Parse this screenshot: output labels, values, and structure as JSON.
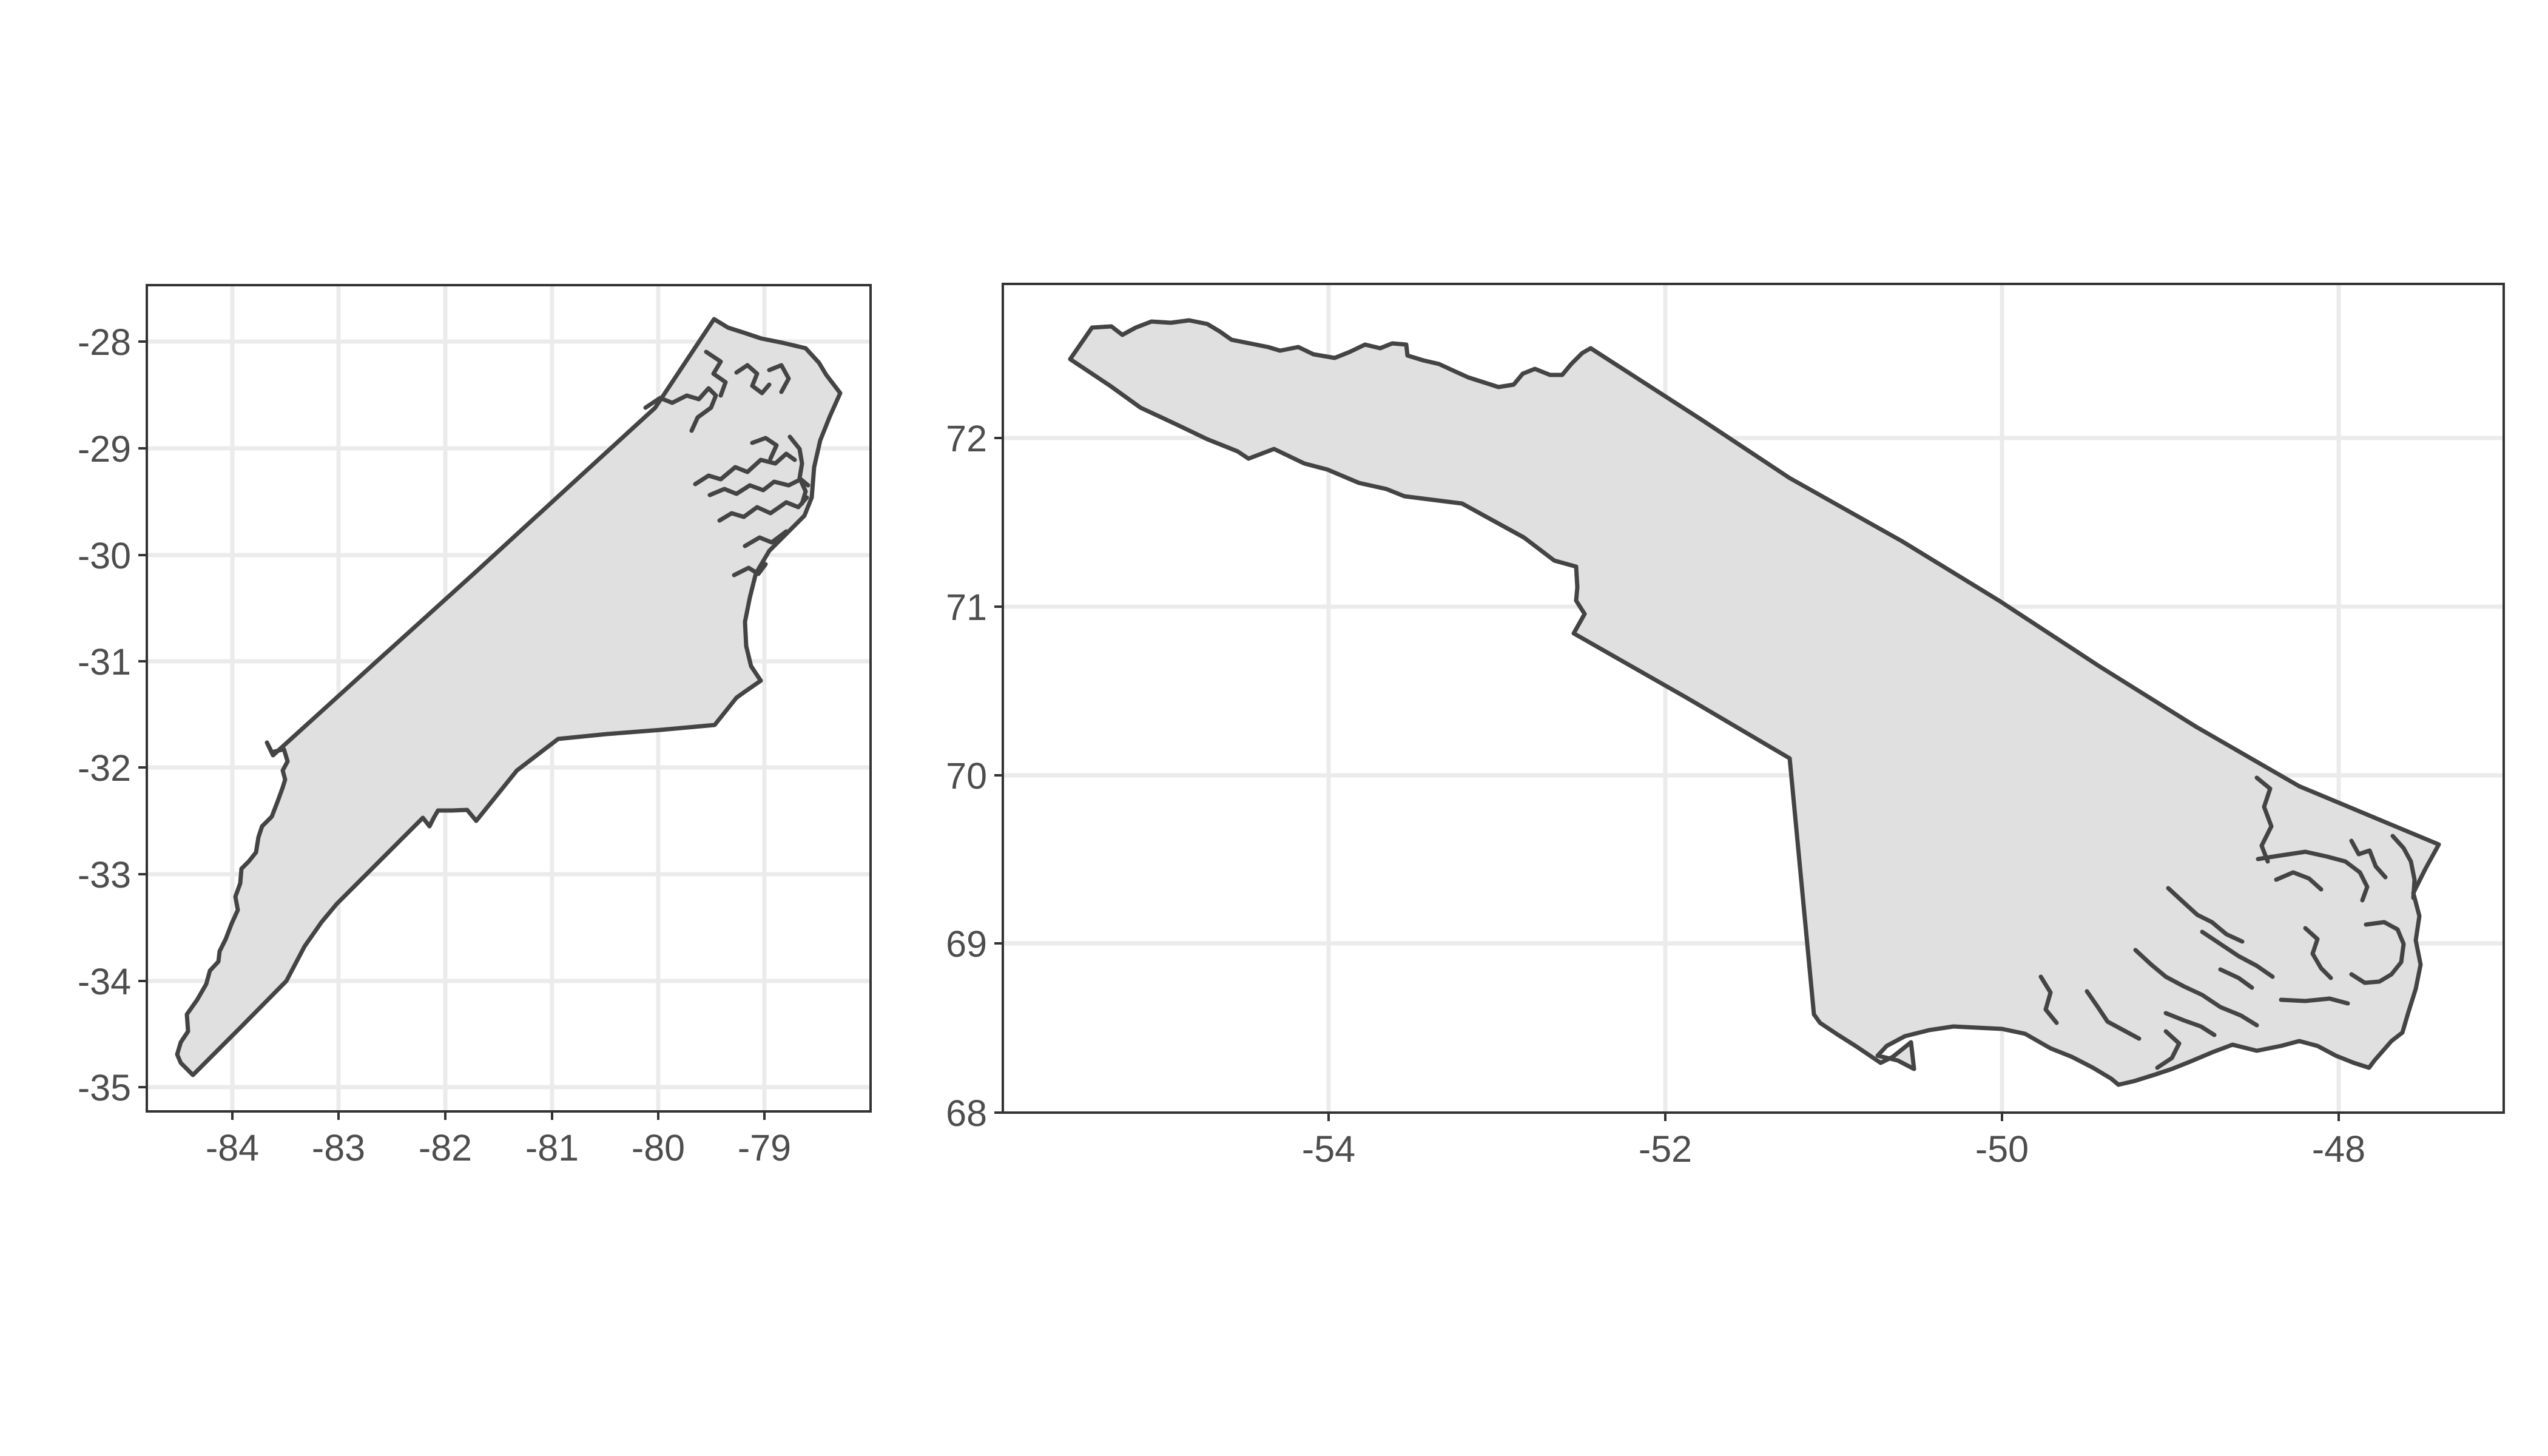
{
  "chart_data": [
    {
      "type": "map",
      "panel": "left",
      "x_ticks": [
        -84,
        -83,
        -82,
        -81,
        -80,
        -79
      ],
      "y_ticks": [
        -28,
        -29,
        -30,
        -31,
        -32,
        -33,
        -34,
        -35
      ],
      "xlim": [
        -84.8,
        -78.0
      ],
      "ylim": [
        -35.2,
        -27.45
      ],
      "grid": true,
      "fill_color": "#e0e0e0",
      "outline_color": "#444444"
    },
    {
      "type": "map",
      "panel": "right",
      "x_ticks": [
        -54,
        -52,
        -50,
        -48
      ],
      "y_ticks": [
        72,
        71,
        70,
        69,
        68
      ],
      "xlim": [
        -55.9,
        -47.0
      ],
      "ylim": [
        68.0,
        72.9
      ],
      "grid": true,
      "fill_color": "#e0e0e0",
      "outline_color": "#444444"
    }
  ]
}
